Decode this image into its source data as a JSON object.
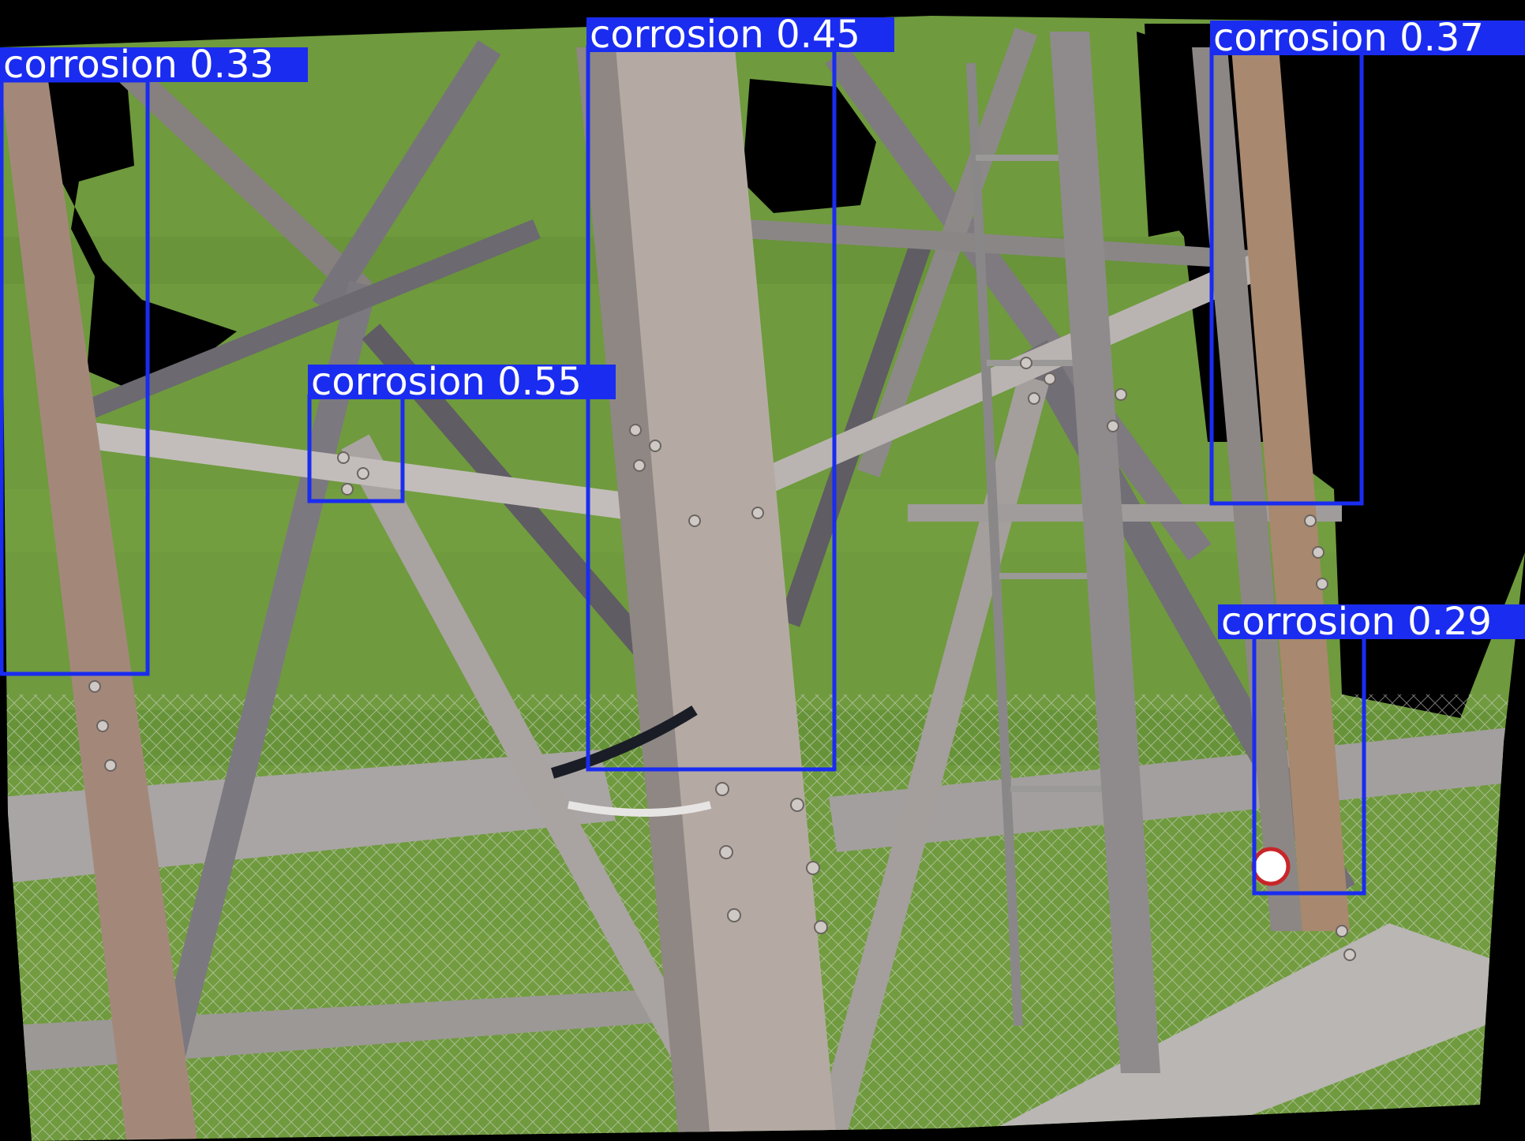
{
  "scene": {
    "subject": "steel lattice transmission tower",
    "background": "grass",
    "colors": {
      "frame_fill": "#000000",
      "grass": "#6f9a3e",
      "grass_dark": "#54802c",
      "steel_light": "#b9b2ae",
      "steel_mid": "#948c88",
      "steel_dark": "#6d6a6e",
      "rusty_leg": "#9e8270",
      "bolt": "#cfc9c6",
      "cable": "#1a1d26",
      "box_stroke": "#1a2cf0",
      "label_text": "#ffffff"
    }
  },
  "detections": [
    {
      "class": "corrosion",
      "confidence": "0.33",
      "text": "corrosion 0.33"
    },
    {
      "class": "corrosion",
      "confidence": "0.45",
      "text": "corrosion 0.45"
    },
    {
      "class": "corrosion",
      "confidence": "0.37",
      "text": "corrosion 0.37"
    },
    {
      "class": "corrosion",
      "confidence": "0.55",
      "text": "corrosion 0.55"
    },
    {
      "class": "corrosion",
      "confidence": "0.29",
      "text": "corrosion 0.29"
    }
  ]
}
